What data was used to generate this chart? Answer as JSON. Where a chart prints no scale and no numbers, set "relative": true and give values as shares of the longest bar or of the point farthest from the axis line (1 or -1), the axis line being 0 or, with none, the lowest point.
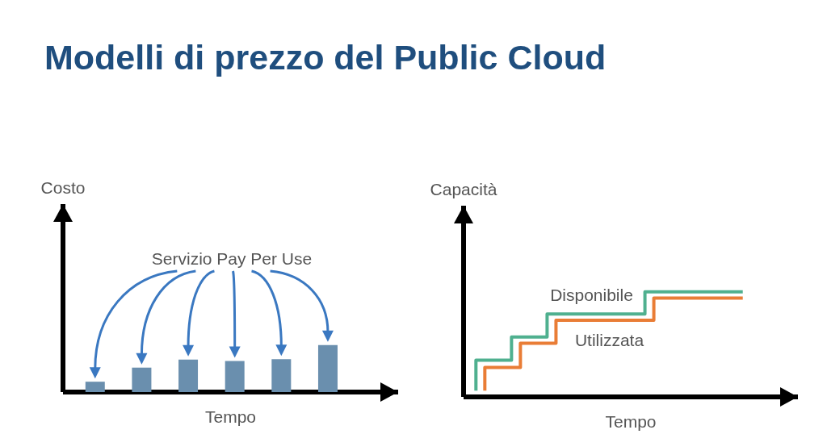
{
  "chart_data": [
    {
      "type": "bar",
      "title": "Modelli di prezzo del Public Cloud",
      "xlabel": "Tempo",
      "ylabel": "Costo",
      "annotations": [
        "Servizio Pay Per Use"
      ],
      "relative": true,
      "categories": [
        null,
        null,
        null,
        null,
        null,
        null
      ],
      "values": [
        0.22,
        0.52,
        0.69,
        0.66,
        0.7,
        1
      ],
      "color": "#6a8fae"
    },
    {
      "type": "step",
      "xlabel": "Tempo",
      "ylabel": "Capacità",
      "relative": true,
      "categories": [
        null,
        null,
        null,
        null,
        null,
        null,
        null,
        null,
        null,
        null,
        null,
        null,
        null,
        null,
        null,
        null,
        null,
        null,
        null,
        null,
        null,
        null,
        null,
        null,
        null,
        null,
        null,
        null,
        null,
        null,
        null
      ],
      "series": [
        {
          "name": "Disponibile",
          "color": "#4fb08f",
          "values": [
            0.06,
            0.35,
            0.35,
            0.35,
            0.35,
            0.57,
            0.57,
            0.57,
            0.57,
            0.79,
            0.79,
            0.79,
            0.79,
            0.79,
            0.79,
            0.79,
            0.79,
            0.79,
            0.79,
            0.79,
            1,
            1,
            1,
            1,
            1,
            1,
            1,
            1,
            1,
            1,
            1
          ]
        },
        {
          "name": "Utilizzata",
          "color": "#e97d36",
          "values": [
            null,
            0.06,
            0.28,
            0.28,
            0.28,
            0.28,
            0.51,
            0.51,
            0.51,
            0.51,
            0.73,
            0.73,
            0.73,
            0.73,
            0.73,
            0.73,
            0.73,
            0.73,
            0.73,
            0.73,
            0.73,
            0.94,
            0.94,
            0.94,
            0.94,
            0.94,
            0.94,
            0.94,
            0.94,
            0.94,
            0.94
          ]
        }
      ]
    }
  ]
}
